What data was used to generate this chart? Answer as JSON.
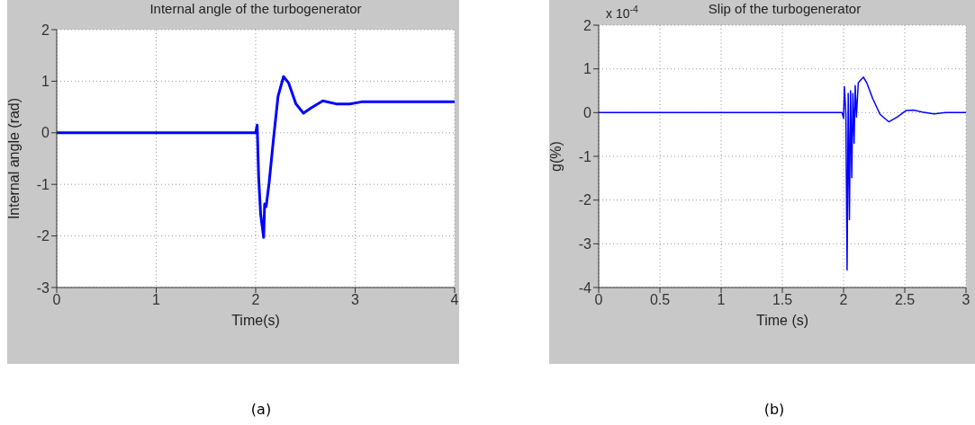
{
  "chart_data": [
    {
      "type": "line",
      "title": "Internal angle of the turbogenerator",
      "xlabel": "Time(s)",
      "ylabel": "Internal angle (rad)",
      "annotations": [
        "(a)"
      ],
      "x": [
        0,
        2.0,
        2.015,
        2.03,
        2.05,
        2.08,
        2.09,
        2.105,
        2.135,
        2.18,
        2.225,
        2.28,
        2.33,
        2.405,
        2.48,
        2.555,
        2.675,
        2.81,
        2.945,
        3.065,
        4.0
      ],
      "series": [
        {
          "color": "#0000ff",
          "values": [
            0,
            0,
            0.15,
            -0.87,
            -1.58,
            -2.03,
            -1.38,
            -1.43,
            -0.97,
            -0.1,
            0.71,
            1.09,
            0.97,
            0.56,
            0.38,
            0.48,
            0.62,
            0.56,
            0.56,
            0.6,
            0.6
          ]
        }
      ],
      "xlim": [
        0,
        4
      ],
      "xticks": [
        0,
        1,
        2,
        3,
        4
      ],
      "ylim": [
        -3,
        2
      ],
      "yticks": [
        -3,
        -2,
        -1,
        0,
        1,
        2
      ],
      "grid": true,
      "marker": "none",
      "line_style": "solid"
    },
    {
      "type": "line",
      "title": "Slip of the turbogenerator",
      "xlabel": "Time (s)",
      "ylabel": "g(%)",
      "annotations": [
        "x 10$^{-4}$",
        "(b)"
      ],
      "x": [
        0,
        1.988,
        2.0,
        2.007,
        2.019,
        2.029,
        2.038,
        2.048,
        2.057,
        2.067,
        2.076,
        2.086,
        2.095,
        2.105,
        2.12,
        2.138,
        2.162,
        2.19,
        2.238,
        2.298,
        2.369,
        2.44,
        2.512,
        2.571,
        2.643,
        2.738,
        2.833,
        3
      ],
      "series": [
        {
          "color": "#0000ff",
          "values": [
            0,
            0,
            -0.13,
            0.59,
            -0.04,
            -3.6,
            0.44,
            -2.45,
            0.5,
            -1.49,
            0.44,
            -0.7,
            0.62,
            -0.1,
            0.68,
            0.74,
            0.81,
            0.68,
            0.32,
            -0.04,
            -0.21,
            -0.1,
            0.05,
            0.06,
            0.01,
            -0.03,
            0,
            0
          ]
        }
      ],
      "xlim": [
        0,
        3
      ],
      "xticks": [
        0,
        0.5,
        1,
        1.5,
        2,
        2.5,
        3
      ],
      "ylim": [
        -4,
        2
      ],
      "yticks": [
        -4,
        -3,
        -2,
        -1,
        0,
        1,
        2
      ],
      "grid": true,
      "marker": "none",
      "line_style": "solid"
    }
  ]
}
